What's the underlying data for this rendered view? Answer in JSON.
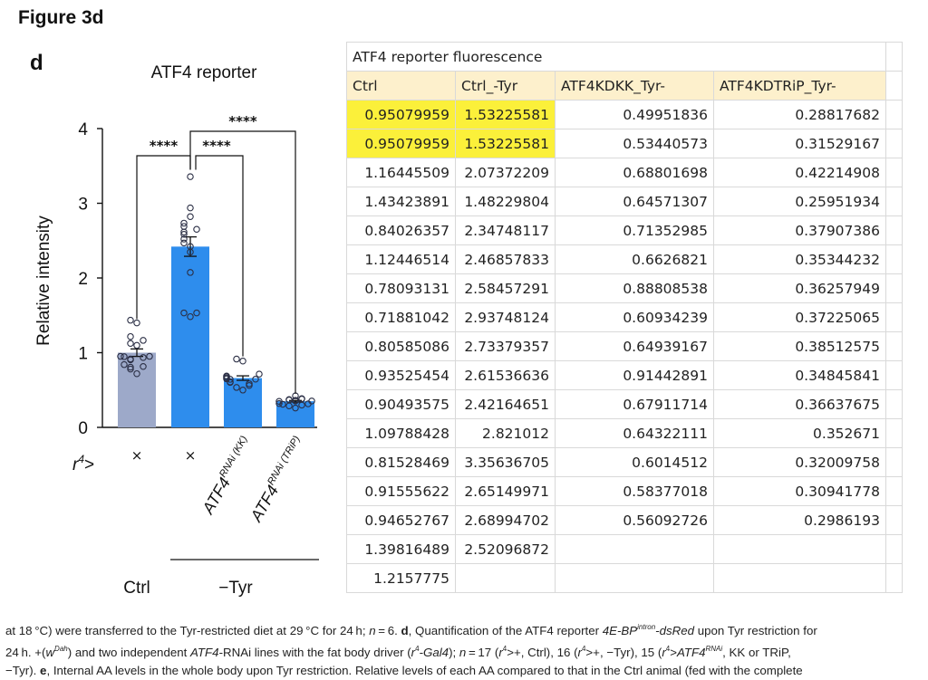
{
  "figure_label": "Figure 3d",
  "chart_data": {
    "type": "bar",
    "panel_letter": "d",
    "title": "ATF4 reporter",
    "ylabel": "Relative intensity",
    "ylim": [
      0,
      4
    ],
    "yticks": [
      "0",
      "1",
      "2",
      "3",
      "4"
    ],
    "genotype_prefix": "r4>",
    "categories": [
      "×",
      "×",
      "ATF4RNAi (KK)",
      "ATF4RNAi (TRiP)"
    ],
    "condition_groups": [
      "Ctrl",
      "−Tyr"
    ],
    "bar_colors": [
      "#9da9c9",
      "#2e8ded",
      "#2e8ded",
      "#2e8ded"
    ],
    "bar_values": [
      1.0,
      2.42,
      0.66,
      0.35
    ],
    "error_values": [
      0.05,
      0.13,
      0.03,
      0.01
    ],
    "points": [
      [
        0.95079959,
        0.95079959,
        1.16445509,
        1.43423891,
        0.84026357,
        1.12446514,
        0.78093131,
        0.71881042,
        0.80585086,
        0.93525454,
        0.90493575,
        1.09788428,
        0.81528469,
        0.91555622,
        0.94652767,
        1.39816489,
        1.2157775
      ],
      [
        1.53225581,
        1.53225581,
        2.07372209,
        1.48229804,
        2.34748117,
        2.46857833,
        2.58457291,
        2.93748124,
        2.73379357,
        2.61536636,
        2.42164651,
        2.821012,
        3.35636705,
        2.65149971,
        2.68994702,
        2.52096872
      ],
      [
        0.49951836,
        0.53440573,
        0.68801698,
        0.64571307,
        0.71352985,
        0.6626821,
        0.88808538,
        0.60934239,
        0.64939167,
        0.91442891,
        0.67911714,
        0.64322111,
        0.6014512,
        0.58377018,
        0.56092726
      ],
      [
        0.28817682,
        0.31529167,
        0.42214908,
        0.25951934,
        0.37907386,
        0.35344232,
        0.36257949,
        0.37225065,
        0.38512575,
        0.34845841,
        0.36637675,
        0.352671,
        0.32009758,
        0.30941778,
        0.2986193
      ]
    ],
    "significance": [
      {
        "from": 0,
        "to": 1,
        "label": "****"
      },
      {
        "from": 1,
        "to": 2,
        "label": "****"
      },
      {
        "from": 1,
        "to": 3,
        "label": "****"
      }
    ]
  },
  "sheet": {
    "title": "ATF4 reporter fluorescence",
    "headers": [
      "Ctrl",
      "Ctrl_-Tyr",
      "ATF4KDKK_Tyr-",
      "ATF4KDTRiP_Tyr-"
    ],
    "rows": [
      [
        "0.95079959",
        "1.53225581",
        "0.49951836",
        "0.28817682"
      ],
      [
        "0.95079959",
        "1.53225581",
        "0.53440573",
        "0.31529167"
      ],
      [
        "1.16445509",
        "2.07372209",
        "0.68801698",
        "0.42214908"
      ],
      [
        "1.43423891",
        "1.48229804",
        "0.64571307",
        "0.25951934"
      ],
      [
        "0.84026357",
        "2.34748117",
        "0.71352985",
        "0.37907386"
      ],
      [
        "1.12446514",
        "2.46857833",
        "0.6626821",
        "0.35344232"
      ],
      [
        "0.78093131",
        "2.58457291",
        "0.88808538",
        "0.36257949"
      ],
      [
        "0.71881042",
        "2.93748124",
        "0.60934239",
        "0.37225065"
      ],
      [
        "0.80585086",
        "2.73379357",
        "0.64939167",
        "0.38512575"
      ],
      [
        "0.93525454",
        "2.61536636",
        "0.91442891",
        "0.34845841"
      ],
      [
        "0.90493575",
        "2.42164651",
        "0.67911714",
        "0.36637675"
      ],
      [
        "1.09788428",
        "2.821012",
        "0.64322111",
        "0.352671"
      ],
      [
        "0.81528469",
        "3.35636705",
        "0.6014512",
        "0.32009758"
      ],
      [
        "0.91555622",
        "2.65149971",
        "0.58377018",
        "0.30941778"
      ],
      [
        "0.94652767",
        "2.68994702",
        "0.56092726",
        "0.2986193"
      ],
      [
        "1.39816489",
        "2.52096872",
        "",
        ""
      ],
      [
        "1.2157775",
        "",
        "",
        ""
      ]
    ],
    "highlight_color": "#fbf03a",
    "header_color": "#fdf0cc"
  },
  "caption_lines": [
    [
      {
        "t": "at 18 °C) were transferred to the Tyr-restricted diet at 29 °C for 24 h; "
      },
      {
        "t": "n",
        "i": true
      },
      {
        "t": " = 6. "
      },
      {
        "t": "d",
        "b": true
      },
      {
        "t": ", Quantification of the ATF4 reporter "
      },
      {
        "t": "4E-BP",
        "i": true
      },
      {
        "t": "intron",
        "i": true,
        "sup": true
      },
      {
        "t": "-dsRed",
        "i": true
      },
      {
        "t": " upon Tyr restriction for"
      }
    ],
    [
      {
        "t": "24 h. +("
      },
      {
        "t": "w",
        "i": true
      },
      {
        "t": "Dah",
        "i": true,
        "sup": true
      },
      {
        "t": ") and two independent "
      },
      {
        "t": "ATF4",
        "i": true
      },
      {
        "t": "-RNAi lines with the fat body driver ("
      },
      {
        "t": "r",
        "i": true
      },
      {
        "t": "4",
        "sup": true
      },
      {
        "t": "-Gal4",
        "i": true
      },
      {
        "t": "); "
      },
      {
        "t": "n",
        "i": true
      },
      {
        "t": " = 17 ("
      },
      {
        "t": "r",
        "i": true
      },
      {
        "t": "4",
        "sup": true
      },
      {
        "t": ">+, Ctrl), 16 ("
      },
      {
        "t": "r",
        "i": true
      },
      {
        "t": "4",
        "sup": true
      },
      {
        "t": ">+, −Tyr), 15 ("
      },
      {
        "t": "r",
        "i": true
      },
      {
        "t": "4",
        "sup": true
      },
      {
        "t": ">"
      },
      {
        "t": "ATF4",
        "i": true
      },
      {
        "t": "RNAi",
        "i": true,
        "sup": true
      },
      {
        "t": ", KK or TRiP,"
      }
    ],
    [
      {
        "t": "−Tyr). "
      },
      {
        "t": "e",
        "b": true
      },
      {
        "t": ", Internal AA levels in the whole body upon Tyr restriction. Relative levels of each AA compared to that in the Ctrl animal (fed with the complete"
      }
    ]
  ]
}
